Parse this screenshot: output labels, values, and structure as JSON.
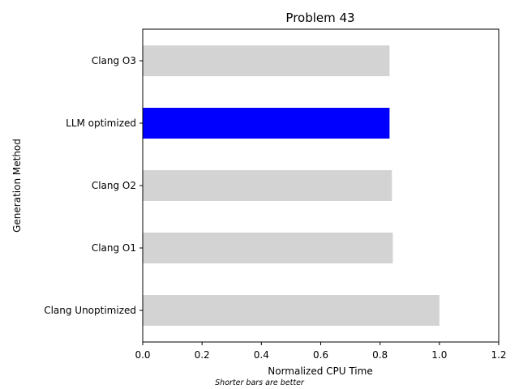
{
  "chart_data": {
    "type": "bar",
    "orientation": "horizontal",
    "title": "Problem 43",
    "xlabel": "Normalized CPU Time",
    "ylabel": "Generation Method",
    "note": "Shorter bars are better",
    "categories": [
      "Clang O3",
      "LLM optimized",
      "Clang O2",
      "Clang O1",
      "Clang Unoptimized"
    ],
    "values": [
      0.832,
      0.832,
      0.84,
      0.843,
      1.0
    ],
    "highlight": "LLM optimized",
    "xlim": [
      0,
      1.2
    ],
    "xticks": [
      "0.0",
      "0.2",
      "0.4",
      "0.6",
      "0.8",
      "1.0",
      "1.2"
    ],
    "colors": {
      "bar": "#d3d3d3",
      "highlight": "#0000ff"
    },
    "grid": false,
    "legend": "none"
  }
}
